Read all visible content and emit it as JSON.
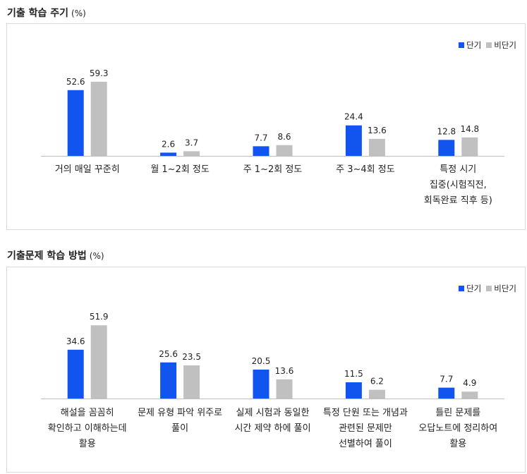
{
  "charts": [
    {
      "heading": "기출 학습 주기",
      "unit": "(%)",
      "legend": [
        {
          "label": "단기",
          "color": "#1155ee"
        },
        {
          "label": "비단기",
          "color": "#c0c0c0"
        }
      ]
    },
    {
      "heading": "기출문제 학습 방법",
      "unit": "(%)",
      "legend": [
        {
          "label": "단기",
          "color": "#1155ee"
        },
        {
          "label": "비단기",
          "color": "#c0c0c0"
        }
      ]
    }
  ],
  "chart_data": [
    {
      "type": "bar",
      "title": "기출 학습 주기",
      "categories": [
        [
          "거의 매일 꾸준히"
        ],
        [
          "월 1~2회 정도"
        ],
        [
          "주 1~2회 정도"
        ],
        [
          "주 3~4회 정도"
        ],
        [
          "특정 시기",
          "집중(시험직전,",
          "회독완료 직후 등)"
        ]
      ],
      "series": [
        {
          "name": "단기",
          "color": "#1155ee",
          "values": [
            52.6,
            2.6,
            7.7,
            24.4,
            12.8
          ]
        },
        {
          "name": "비단기",
          "color": "#c0c0c0",
          "values": [
            59.3,
            3.7,
            8.6,
            13.6,
            14.8
          ]
        }
      ],
      "value_labels": [
        [
          "52.6",
          "2.6",
          "7.7",
          "24.4",
          "12.8"
        ],
        [
          "59.3",
          "3.7",
          "8.6",
          "13.6",
          "14.8"
        ]
      ],
      "ylim": [
        0,
        66
      ],
      "legend_position": "top-right",
      "grid": false
    },
    {
      "type": "bar",
      "title": "기출문제 학습 방법",
      "categories": [
        [
          "해설을 꼼꼼히",
          "확인하고 이해하는데",
          "활용"
        ],
        [
          "문제 유형 파악 위주로",
          "풀이"
        ],
        [
          "실제 시험과 동일한",
          "시간 제약 하에 풀이"
        ],
        [
          "특정 단원 또는 개념과",
          "관련된 문제만",
          "선별하여 풀이"
        ],
        [
          "틀린 문제를",
          "오답노트에 정리하여",
          "활용"
        ]
      ],
      "series": [
        {
          "name": "단기",
          "color": "#1155ee",
          "values": [
            34.6,
            25.6,
            20.5,
            11.5,
            7.7
          ]
        },
        {
          "name": "비단기",
          "color": "#c0c0c0",
          "values": [
            51.9,
            23.5,
            13.6,
            6.2,
            4.9
          ]
        }
      ],
      "value_labels": [
        [
          "34.6",
          "25.6",
          "20.5",
          "11.5",
          "7.7"
        ],
        [
          "51.9",
          "23.5",
          "13.6",
          "6.2",
          "4.9"
        ]
      ],
      "ylim": [
        0,
        56
      ],
      "legend_position": "top-right",
      "grid": false
    }
  ]
}
